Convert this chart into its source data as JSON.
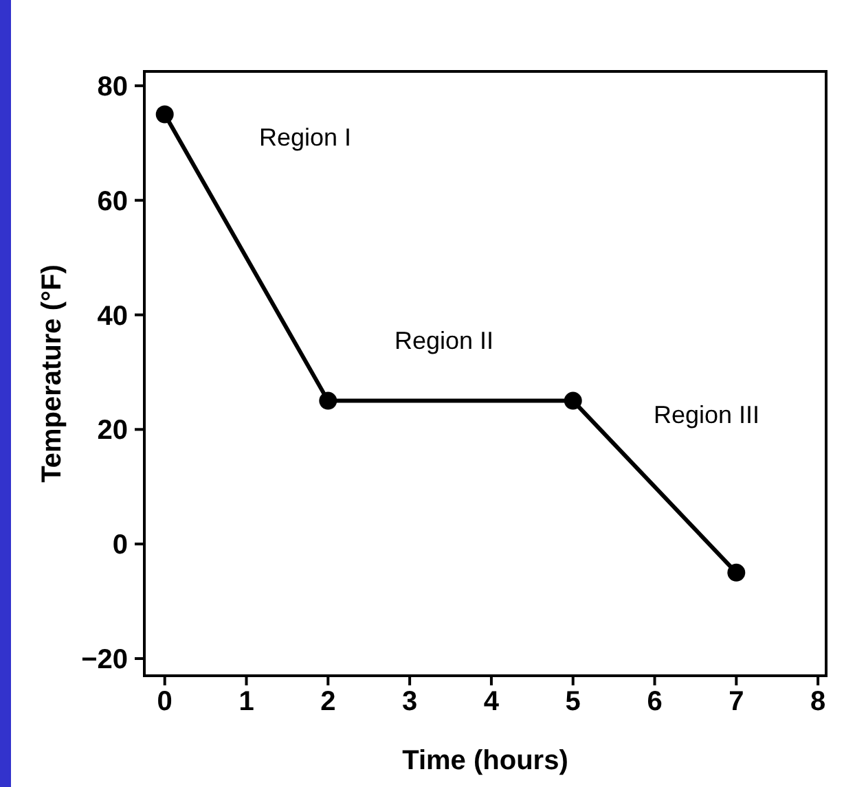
{
  "chart_data": {
    "type": "line",
    "xlabel": "Time (hours)",
    "ylabel": "Temperature (°F)",
    "x": [
      0,
      2,
      5,
      7
    ],
    "series": [
      {
        "color": "#000000",
        "values": [
          75,
          25,
          25,
          -5
        ]
      }
    ],
    "marker": "circle",
    "xlim": [
      -0.25,
      8.1
    ],
    "ylim": [
      -23,
      82.5
    ],
    "xticks": [
      0,
      1,
      2,
      3,
      4,
      5,
      6,
      7,
      8
    ],
    "yticks": [
      -20,
      0,
      20,
      40,
      60,
      80
    ],
    "grid": false,
    "annotations": [
      "Region I",
      "Region II",
      "Region III"
    ]
  }
}
